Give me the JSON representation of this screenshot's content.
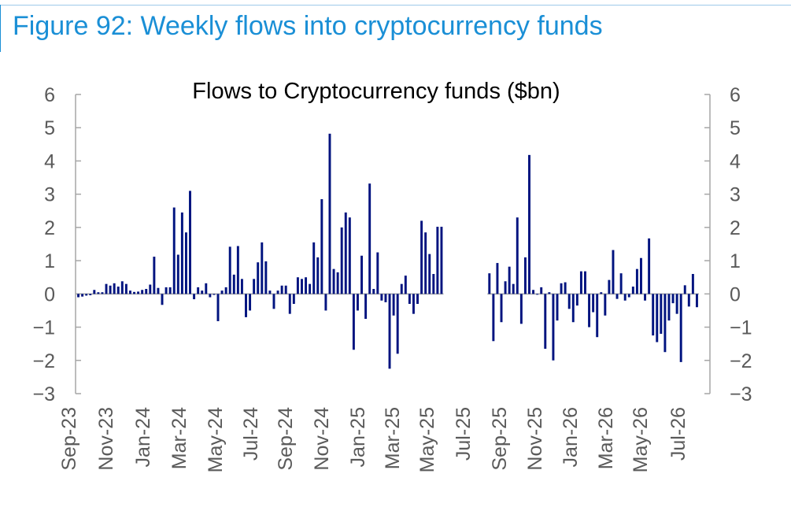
{
  "figure_title": "Figure 92: Weekly flows into cryptocurrency funds",
  "chart_data": {
    "type": "bar",
    "title": "Flows to Cryptocurrency funds ($bn)",
    "xlabel": "",
    "ylabel": "",
    "ylim": [
      -3,
      6
    ],
    "yticks": [
      6,
      5,
      4,
      3,
      2,
      1,
      0,
      -1,
      -2,
      -3
    ],
    "grid": false,
    "legend": "none",
    "bar_color": "#00137f",
    "axis_color": "#a6a6a6",
    "x_tick_labels": [
      "Sep-23",
      "Nov-23",
      "Jan-24",
      "Mar-24",
      "May-24",
      "Jul-24",
      "Sep-24",
      "Nov-24",
      "Jan-25",
      "Mar-25",
      "May-25",
      "Jul-25",
      "Sep-25",
      "Nov-25",
      "Jan-26",
      "Mar-26",
      "May-26",
      "Jul-26"
    ],
    "values": [
      -0.1,
      -0.08,
      -0.05,
      -0.04,
      0.12,
      0.05,
      0.05,
      0.3,
      0.25,
      0.32,
      0.22,
      0.38,
      0.3,
      0.1,
      0.06,
      0.07,
      0.12,
      0.15,
      0.28,
      1.12,
      0.18,
      -0.33,
      0.2,
      0.2,
      2.6,
      1.18,
      2.45,
      1.85,
      3.1,
      -0.16,
      0.2,
      0.1,
      0.32,
      -0.1,
      -0.03,
      -0.82,
      0.1,
      0.2,
      1.42,
      0.58,
      1.44,
      0.45,
      -0.7,
      -0.5,
      0.45,
      0.95,
      1.55,
      0.98,
      0.1,
      -0.45,
      0.1,
      0.25,
      0.25,
      -0.6,
      -0.3,
      0.5,
      0.45,
      0.5,
      0.3,
      1.55,
      1.1,
      2.85,
      -0.5,
      4.82,
      0.75,
      0.65,
      2.0,
      2.45,
      2.3,
      -1.68,
      -0.5,
      1.15,
      -0.75,
      3.32,
      0.15,
      1.25,
      -0.2,
      -0.25,
      -2.25,
      -0.65,
      -1.8,
      0.3,
      0.55,
      -0.3,
      -0.6,
      -0.3,
      2.2,
      1.85,
      1.2,
      0.6,
      2.02,
      2.02,
      null,
      null,
      null,
      null,
      null,
      null,
      null,
      null,
      null,
      null,
      null,
      0.62,
      -1.42,
      0.93,
      -0.85,
      0.38,
      0.82,
      0.3,
      2.3,
      -0.9,
      1.1,
      4.18,
      0.12,
      0.0,
      0.2,
      -1.65,
      0.05,
      -2.0,
      -0.8,
      0.32,
      0.35,
      -0.45,
      -0.85,
      -0.35,
      0.68,
      0.68,
      -1.0,
      -0.55,
      -1.3,
      0.05,
      -0.65,
      0.42,
      1.32,
      -0.15,
      0.62,
      -0.2,
      -0.1,
      0.22,
      0.75,
      1.08,
      -0.2,
      1.67,
      -1.25,
      -1.45,
      -1.2,
      -1.75,
      -0.8,
      -0.28,
      -0.6,
      -2.05,
      0.26,
      -0.38,
      0.6,
      -0.4
    ]
  }
}
